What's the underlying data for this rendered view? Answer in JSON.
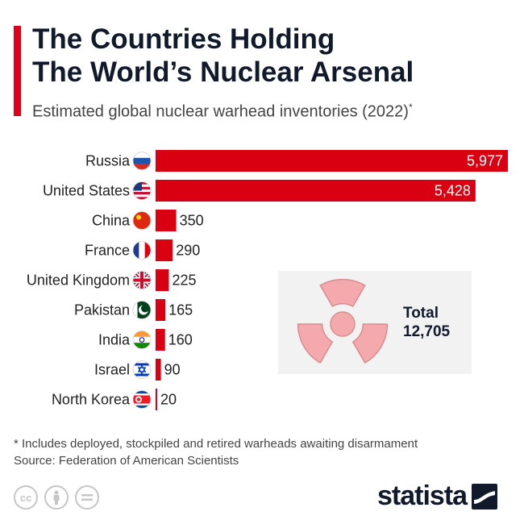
{
  "header": {
    "title_line1": "The Countries Holding",
    "title_line2": "The World’s Nuclear Arsenal",
    "subtitle": "Estimated global nuclear warhead inventories (2022)",
    "subtitle_mark": "*",
    "accent_color": "#e1001a"
  },
  "chart_data": {
    "type": "bar",
    "orientation": "horizontal",
    "title": "The Countries Holding The World’s Nuclear Arsenal",
    "subtitle": "Estimated global nuclear warhead inventories (2022)*",
    "categories": [
      "Russia",
      "United States",
      "China",
      "France",
      "United Kingdom",
      "Pakistan",
      "India",
      "Israel",
      "North Korea"
    ],
    "values": [
      5977,
      5428,
      350,
      290,
      225,
      165,
      160,
      90,
      20
    ],
    "value_labels": [
      "5,977",
      "5,428",
      "350",
      "290",
      "225",
      "165",
      "160",
      "90",
      "20"
    ],
    "flags": [
      "flag-russia",
      "flag-united-states",
      "flag-china",
      "flag-france",
      "flag-united-kingdom",
      "flag-pakistan",
      "flag-india",
      "flag-israel",
      "flag-north-korea"
    ],
    "bar_color": "#d90011",
    "xlim": [
      0,
      5977
    ],
    "grid": false
  },
  "total": {
    "label": "Total",
    "value": "12,705",
    "icon": "radiation-trefoil-icon"
  },
  "footer": {
    "note": "* Includes deployed, stockpiled and retired warheads awaiting disarmament",
    "source": "Source: Federation of American Scientists",
    "license_icons": [
      "cc-icon",
      "by-icon",
      "nd-icon"
    ],
    "brand": "statista"
  }
}
